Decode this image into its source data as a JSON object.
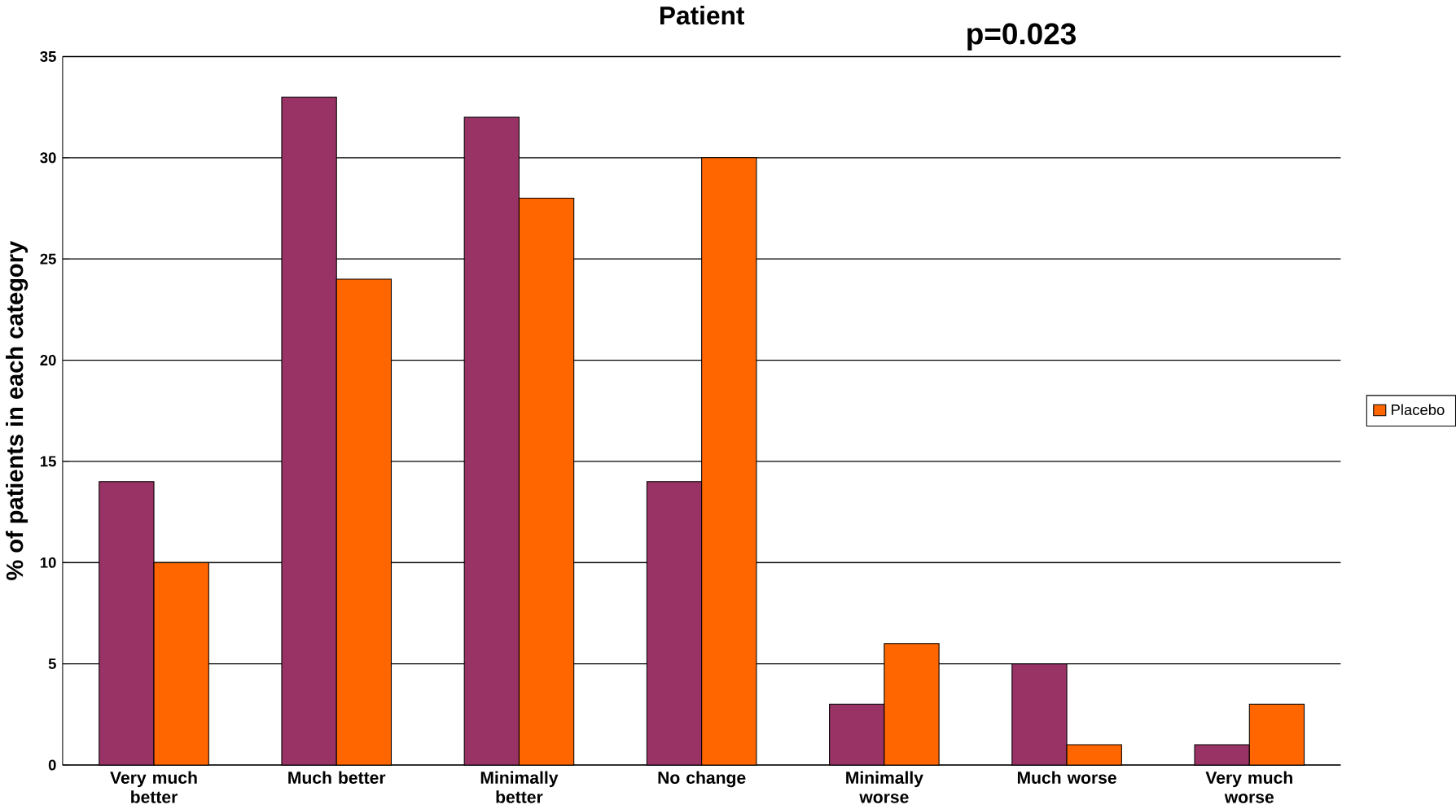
{
  "chart_data": {
    "type": "bar",
    "title": "Patient",
    "ylabel": "% of patients in each category",
    "categories": [
      "Very much better",
      "Much better",
      "Minimally better",
      "No change",
      "Minimally worse",
      "Much worse",
      "Very much worse"
    ],
    "series": [
      {
        "color": "#993366",
        "values": [
          14,
          33,
          32,
          14,
          3,
          5,
          1
        ]
      },
      {
        "name": "Placebo",
        "color": "#ff6600",
        "values": [
          10,
          24,
          28,
          30,
          6,
          1,
          3
        ]
      }
    ],
    "ylim": [
      0,
      35
    ],
    "yticks": [
      0,
      5,
      10,
      15,
      20,
      25,
      30,
      35
    ],
    "grid": "y",
    "legend": "right",
    "annotations": [
      "p=0.023"
    ]
  }
}
